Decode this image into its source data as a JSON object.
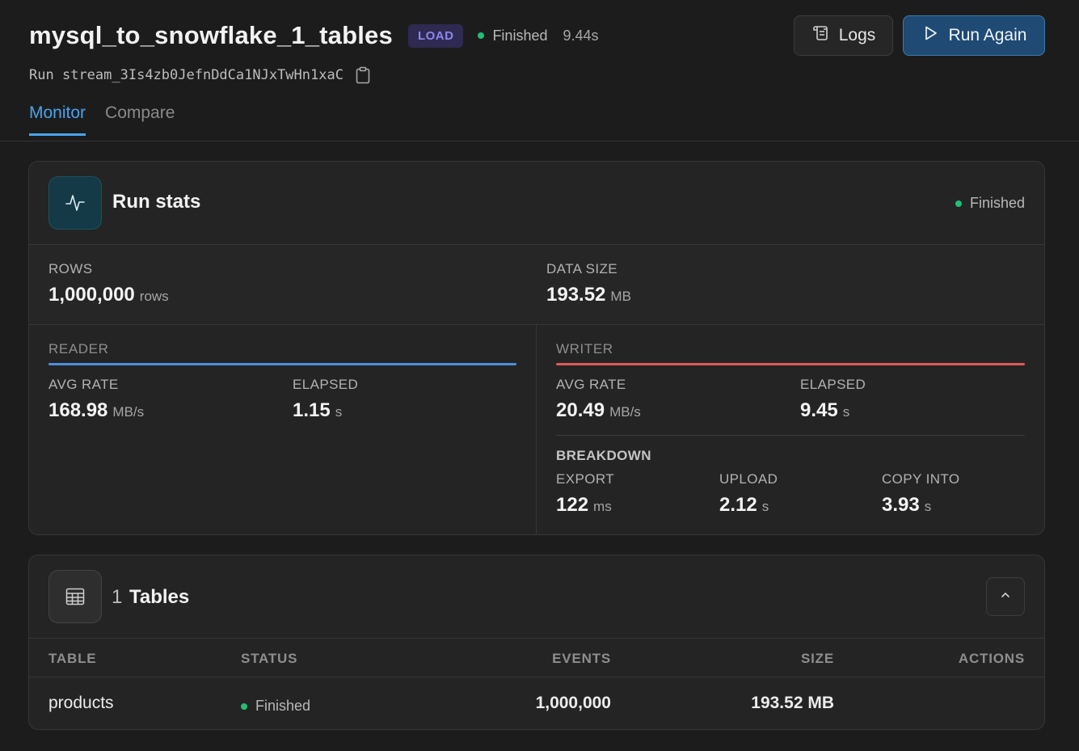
{
  "header": {
    "title": "mysql_to_snowflake_1_tables",
    "badge": "LOAD",
    "status": "Finished",
    "duration": "9.44s",
    "run_label": "Run",
    "run_id": "stream_3Is4zb0JefnDdCa1NJxTwHn1xaC",
    "copy_icon": "clipboard-icon"
  },
  "actions": {
    "logs_label": "Logs",
    "logs_icon": "scroll-icon",
    "run_again_label": "Run Again",
    "run_again_icon": "play-icon"
  },
  "tabs": [
    {
      "label": "Monitor",
      "active": true
    },
    {
      "label": "Compare",
      "active": false
    }
  ],
  "run_stats": {
    "title": "Run stats",
    "icon": "activity-icon",
    "status": "Finished",
    "rows": {
      "label": "ROWS",
      "value": "1,000,000",
      "unit": "rows"
    },
    "data_size": {
      "label": "DATA SIZE",
      "value": "193.52",
      "unit": "MB"
    },
    "reader": {
      "title": "READER",
      "avg_rate": {
        "label": "AVG RATE",
        "value": "168.98",
        "unit": "MB/s"
      },
      "elapsed": {
        "label": "ELAPSED",
        "value": "1.15",
        "unit": "s"
      }
    },
    "writer": {
      "title": "WRITER",
      "avg_rate": {
        "label": "AVG RATE",
        "value": "20.49",
        "unit": "MB/s"
      },
      "elapsed": {
        "label": "ELAPSED",
        "value": "9.45",
        "unit": "s"
      },
      "breakdown": {
        "title": "BREAKDOWN",
        "export": {
          "label": "EXPORT",
          "value": "122",
          "unit": "ms"
        },
        "upload": {
          "label": "UPLOAD",
          "value": "2.12",
          "unit": "s"
        },
        "copy_into": {
          "label": "COPY INTO",
          "value": "3.93",
          "unit": "s"
        }
      }
    }
  },
  "tables": {
    "count": "1",
    "title": "Tables",
    "icon": "table-icon",
    "collapse_icon": "chevron-up-icon",
    "columns": {
      "table": "TABLE",
      "status": "STATUS",
      "events": "EVENTS",
      "size": "SIZE",
      "actions": "ACTIONS"
    },
    "rows": [
      {
        "table": "products",
        "status": "Finished",
        "events": "1,000,000",
        "size": "193.52 MB"
      }
    ]
  },
  "colors": {
    "accent": "#4aa3ee",
    "success": "#1fbf75",
    "reader": "#4e8fdf",
    "writer": "#e05a5a",
    "badge": "#8e86f2"
  }
}
